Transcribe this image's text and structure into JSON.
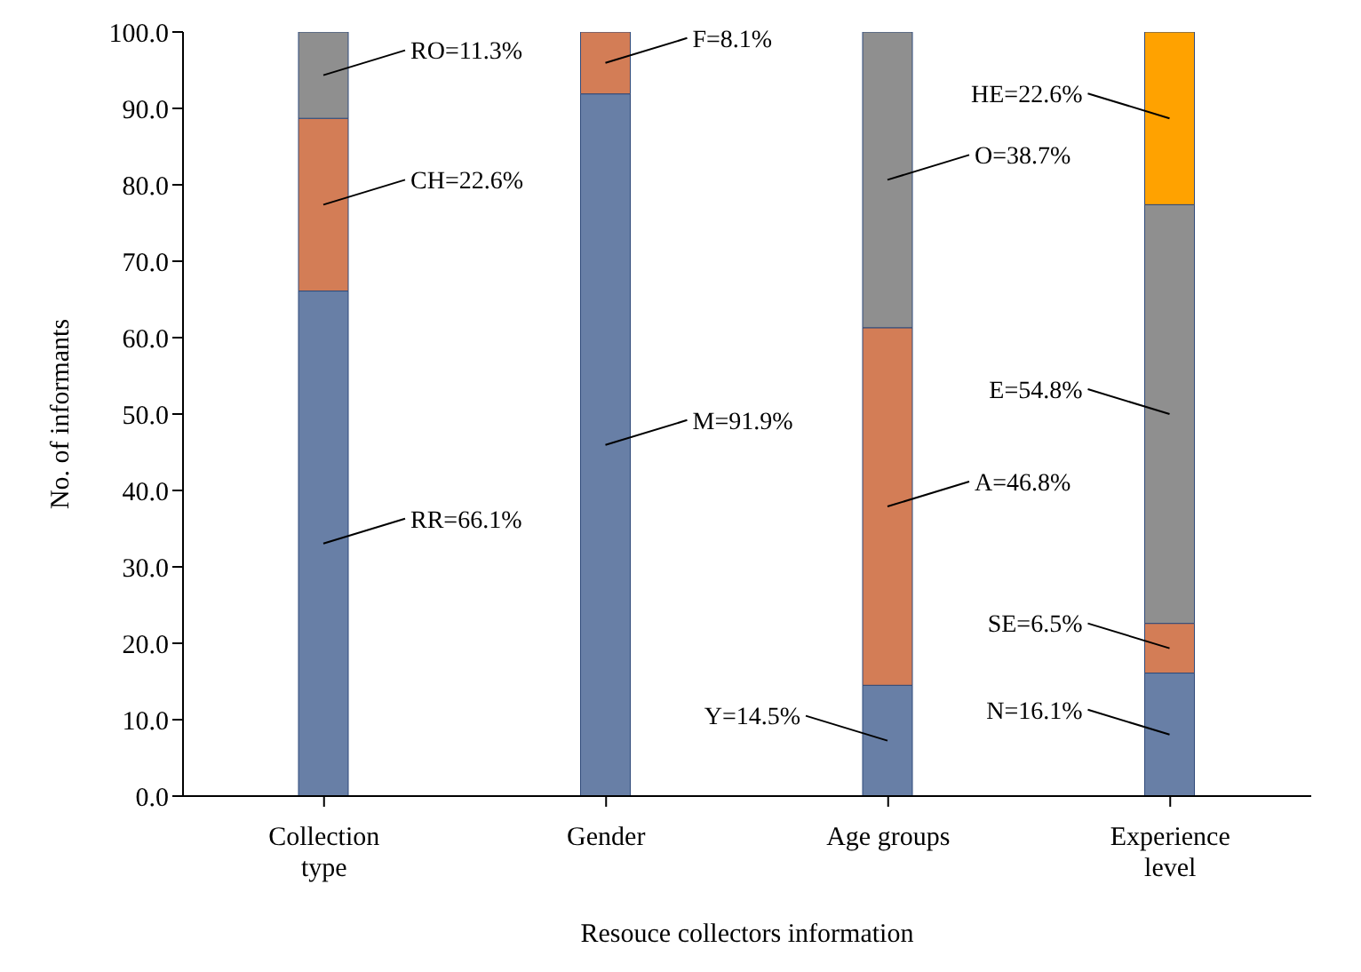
{
  "chart_data": {
    "type": "bar",
    "stacked": true,
    "xlabel": "Resouce collectors information",
    "ylabel": "No. of informants",
    "categories": [
      "Collection type",
      "Gender",
      "Age groups",
      "Experience level"
    ],
    "series": [
      {
        "color": "#687fa6",
        "values": [
          66.1,
          91.9,
          14.5,
          16.1
        ],
        "value_labels": [
          "RR=66.1%",
          "M=91.9%",
          "Y=14.5%",
          "N=16.1%"
        ]
      },
      {
        "color": "#d37d56",
        "values": [
          22.6,
          8.1,
          46.8,
          6.5
        ],
        "value_labels": [
          "CH=22.6%",
          "F=8.1%",
          "A=46.8%",
          "SE=6.5%"
        ]
      },
      {
        "color": "#8f8f8f",
        "values": [
          11.3,
          null,
          38.7,
          54.8
        ],
        "value_labels": [
          "RO=11.3%",
          null,
          "O=38.7%",
          "E=54.8%"
        ]
      },
      {
        "color": "#ffa200",
        "values": [
          null,
          null,
          null,
          22.6
        ],
        "value_labels": [
          null,
          null,
          null,
          "HE=22.6%"
        ]
      }
    ],
    "ylim": [
      0,
      100
    ],
    "yticks": [
      {
        "value": 0,
        "label": "0.0"
      },
      {
        "value": 10,
        "label": "10.0"
      },
      {
        "value": 20,
        "label": "20.0"
      },
      {
        "value": 30,
        "label": "30.0"
      },
      {
        "value": 40,
        "label": "40.0"
      },
      {
        "value": 50,
        "label": "50.0"
      },
      {
        "value": 60,
        "label": "60.0"
      },
      {
        "value": 70,
        "label": "70.0"
      },
      {
        "value": 80,
        "label": "80.0"
      },
      {
        "value": 90,
        "label": "90.0"
      },
      {
        "value": 100,
        "label": "100.0"
      }
    ],
    "grid": false,
    "legend": false
  }
}
